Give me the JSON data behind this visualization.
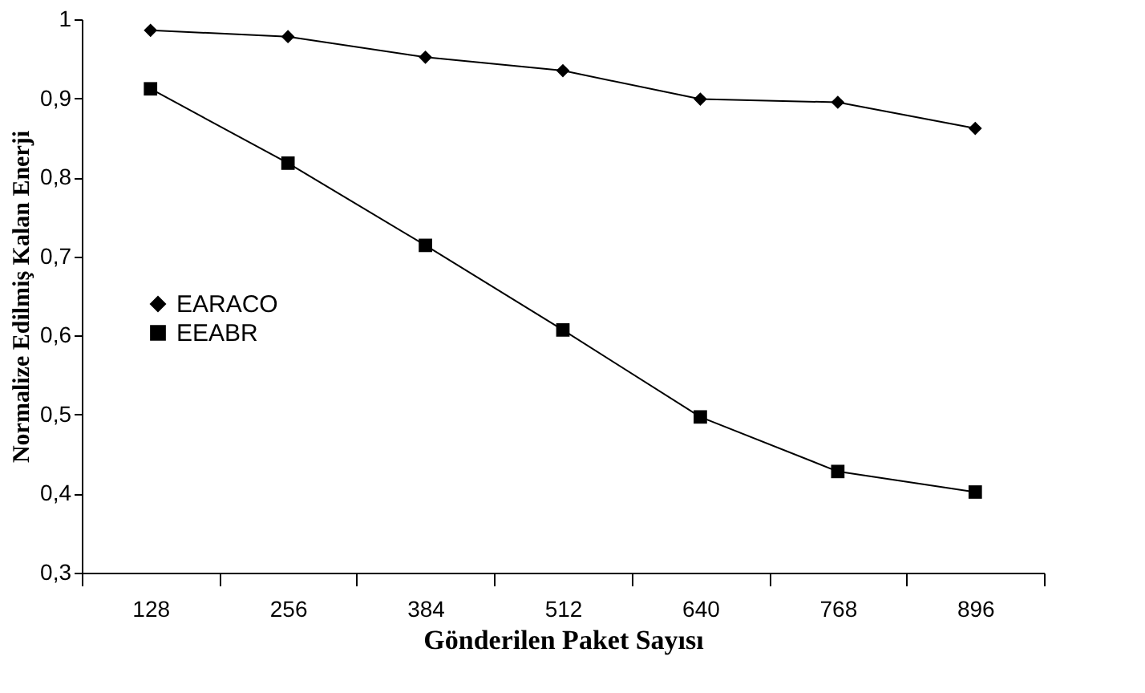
{
  "chart_data": {
    "type": "line",
    "xlabel": "Gönderilen Paket Sayısı",
    "ylabel": "Normalize Edilmiş Kalan Enerji",
    "categories": [
      "128",
      "256",
      "384",
      "512",
      "640",
      "768",
      "896"
    ],
    "series": [
      {
        "name": "EARACO",
        "color": "#000000",
        "marker": "diamond",
        "values": [
          0.986,
          0.978,
          0.952,
          0.935,
          0.899,
          0.895,
          0.862
        ]
      },
      {
        "name": "EEABR",
        "color": "#000000",
        "marker": "square",
        "values": [
          0.912,
          0.818,
          0.714,
          0.607,
          0.497,
          0.428,
          0.402
        ]
      }
    ],
    "ylim": [
      0.3,
      1.0
    ],
    "yticks": [
      {
        "value": 0.3,
        "label": "0,3"
      },
      {
        "value": 0.4,
        "label": "0,4"
      },
      {
        "value": 0.5,
        "label": "0,5"
      },
      {
        "value": 0.6,
        "label": "0,6"
      },
      {
        "value": 0.7,
        "label": "0,7"
      },
      {
        "value": 0.8,
        "label": "0,8"
      },
      {
        "value": 0.9,
        "label": "0,9"
      },
      {
        "value": 1.0,
        "label": "1"
      }
    ],
    "grid": false,
    "legend": "left",
    "line_style": "solid"
  }
}
